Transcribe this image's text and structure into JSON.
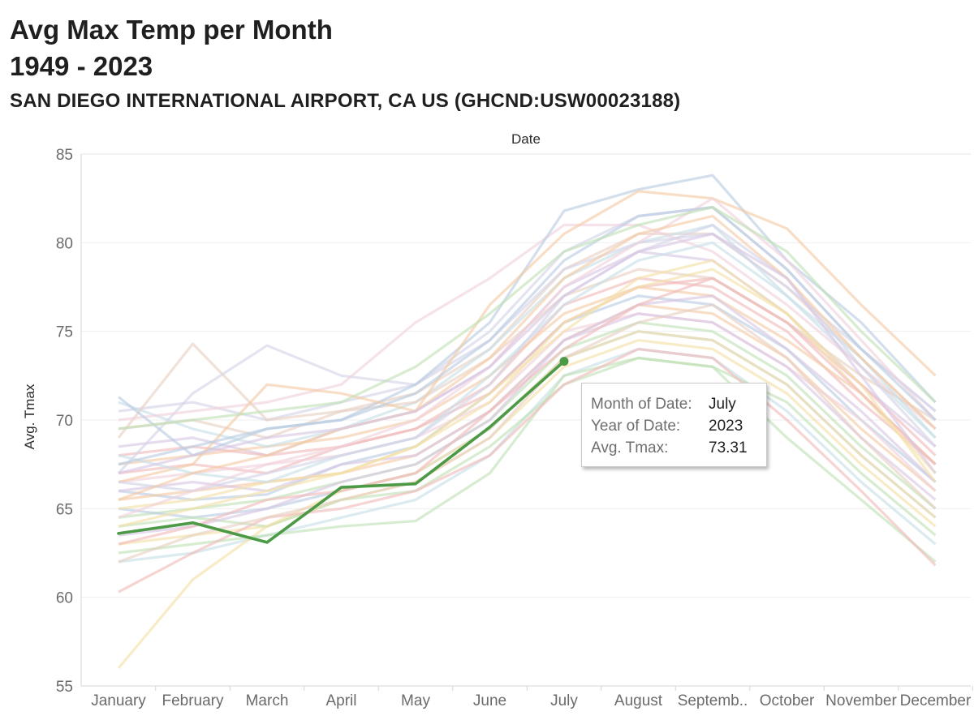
{
  "title_line1": "Avg Max Temp per Month",
  "title_line2": "1949 - 2023",
  "subtitle": "SAN DIEGO INTERNATIONAL AIRPORT, CA US (GHCND:USW00023188)",
  "chart_data": {
    "type": "line",
    "xlabel": "Date",
    "ylabel": "Avg. Tmax",
    "ylim": [
      55,
      85
    ],
    "yticks": [
      55,
      60,
      65,
      70,
      75,
      80,
      85
    ],
    "categories": [
      "January",
      "February",
      "March",
      "April",
      "May",
      "June",
      "July",
      "August",
      "Septemb..",
      "October",
      "November",
      "December"
    ],
    "grid": true,
    "highlight_color": "#4c9a46",
    "highlighted_series": {
      "year": "2023",
      "values": [
        63.6,
        64.2,
        63.1,
        66.2,
        66.4,
        69.6,
        73.31
      ]
    },
    "background_series": [
      [
        66.0,
        65.5,
        65.8,
        67.5,
        68.5,
        71.5,
        75.5,
        77.0,
        76.5,
        74.0,
        70.0,
        66.5
      ],
      [
        65.5,
        66.0,
        66.5,
        67.0,
        68.0,
        70.5,
        74.5,
        76.5,
        76.0,
        73.5,
        69.5,
        66.0
      ],
      [
        64.5,
        65.0,
        65.5,
        66.5,
        67.5,
        70.0,
        74.0,
        75.5,
        75.0,
        72.5,
        68.5,
        65.0
      ],
      [
        67.0,
        67.5,
        67.0,
        68.5,
        69.5,
        72.0,
        76.5,
        78.0,
        77.5,
        75.0,
        71.0,
        67.5
      ],
      [
        68.5,
        69.0,
        68.0,
        69.5,
        70.5,
        73.0,
        77.5,
        79.5,
        79.0,
        76.0,
        72.0,
        68.5
      ],
      [
        63.0,
        63.5,
        64.0,
        65.5,
        66.5,
        69.0,
        73.0,
        74.5,
        74.0,
        71.5,
        67.5,
        64.0
      ],
      [
        62.0,
        62.5,
        63.5,
        64.5,
        65.5,
        68.0,
        72.5,
        74.0,
        73.5,
        70.5,
        66.5,
        63.0
      ],
      [
        69.5,
        70.0,
        69.0,
        70.5,
        71.5,
        74.0,
        78.5,
        80.5,
        80.5,
        77.5,
        73.5,
        69.5
      ],
      [
        70.5,
        71.0,
        70.0,
        71.0,
        72.0,
        75.0,
        79.5,
        81.5,
        82.0,
        78.5,
        74.0,
        70.5
      ],
      [
        66.5,
        67.0,
        67.5,
        68.0,
        69.0,
        71.0,
        75.0,
        76.0,
        75.5,
        73.0,
        70.0,
        66.0
      ],
      [
        65.0,
        64.5,
        65.0,
        66.0,
        67.0,
        69.5,
        73.5,
        75.0,
        74.5,
        72.0,
        68.0,
        64.5
      ],
      [
        67.5,
        68.0,
        68.5,
        69.0,
        70.0,
        72.5,
        76.0,
        77.5,
        77.0,
        74.5,
        71.5,
        67.5
      ],
      [
        64.0,
        64.5,
        64.0,
        65.5,
        66.0,
        68.5,
        72.0,
        73.5,
        73.0,
        71.0,
        67.0,
        63.5
      ],
      [
        68.0,
        68.5,
        68.0,
        68.5,
        69.5,
        71.5,
        75.5,
        77.5,
        78.0,
        75.5,
        72.0,
        68.0
      ],
      [
        66.0,
        66.5,
        66.0,
        67.5,
        68.0,
        70.5,
        74.5,
        76.0,
        75.5,
        73.0,
        69.0,
        65.5
      ],
      [
        56.0,
        61.0,
        64.0,
        66.0,
        67.0,
        69.5,
        73.5,
        75.0,
        74.5,
        72.0,
        68.0,
        64.5
      ],
      [
        71.0,
        69.5,
        68.5,
        69.5,
        71.0,
        74.0,
        78.0,
        80.0,
        81.0,
        77.0,
        73.0,
        69.0
      ],
      [
        69.0,
        74.3,
        70.0,
        70.5,
        71.0,
        73.5,
        77.0,
        78.5,
        78.0,
        75.5,
        72.5,
        70.0
      ],
      [
        67.0,
        71.5,
        74.2,
        72.5,
        72.0,
        74.5,
        78.5,
        80.0,
        80.5,
        77.5,
        74.0,
        70.5
      ],
      [
        70.0,
        70.5,
        71.0,
        72.0,
        75.5,
        78.0,
        81.0,
        81.0,
        79.5,
        76.5,
        73.0,
        69.5
      ],
      [
        71.3,
        68.0,
        69.5,
        70.0,
        72.0,
        75.5,
        81.8,
        83.0,
        83.8,
        79.0,
        75.5,
        71.0
      ],
      [
        66.5,
        67.5,
        72.0,
        71.5,
        70.5,
        76.5,
        80.5,
        82.9,
        82.5,
        80.8,
        76.5,
        72.5
      ],
      [
        62.5,
        63.0,
        63.5,
        64.0,
        64.3,
        67.0,
        72.5,
        73.5,
        73.0,
        69.0,
        65.5,
        62.0
      ],
      [
        60.3,
        62.5,
        64.5,
        65.0,
        66.0,
        68.0,
        72.0,
        74.0,
        73.5,
        70.0,
        66.0,
        61.8
      ],
      [
        63.5,
        64.0,
        65.0,
        66.5,
        67.5,
        70.0,
        74.5,
        76.5,
        77.0,
        74.0,
        70.5,
        66.5
      ],
      [
        65.0,
        65.5,
        66.5,
        67.0,
        68.5,
        71.5,
        75.0,
        78.0,
        79.0,
        76.0,
        71.5,
        67.0
      ],
      [
        68.0,
        67.0,
        66.5,
        68.0,
        69.0,
        72.5,
        76.5,
        79.0,
        80.0,
        77.0,
        73.5,
        69.0
      ],
      [
        62.0,
        63.5,
        64.5,
        65.5,
        66.5,
        69.0,
        73.5,
        75.5,
        76.5,
        73.5,
        69.0,
        65.0
      ],
      [
        66.5,
        66.0,
        67.0,
        68.0,
        69.0,
        72.0,
        77.0,
        79.5,
        81.0,
        78.0,
        73.0,
        68.5
      ],
      [
        64.5,
        66.0,
        67.5,
        68.5,
        70.0,
        73.0,
        77.5,
        80.0,
        82.5,
        79.0,
        74.5,
        70.0
      ],
      [
        67.5,
        68.5,
        69.5,
        70.0,
        71.5,
        74.5,
        79.0,
        81.5,
        82.0,
        78.5,
        74.0,
        70.0
      ],
      [
        65.5,
        67.0,
        68.0,
        69.5,
        70.5,
        73.5,
        78.0,
        80.5,
        81.5,
        78.0,
        73.5,
        69.5
      ],
      [
        69.5,
        70.0,
        70.5,
        71.0,
        73.0,
        76.0,
        79.5,
        81.0,
        82.0,
        79.5,
        75.0,
        71.0
      ],
      [
        63.0,
        64.0,
        65.5,
        66.0,
        67.0,
        70.5,
        74.0,
        76.5,
        78.0,
        75.5,
        71.5,
        67.5
      ],
      [
        67.0,
        68.0,
        69.0,
        69.5,
        70.5,
        73.0,
        77.0,
        79.5,
        80.5,
        78.0,
        72.5,
        67.0
      ],
      [
        64.0,
        65.0,
        66.0,
        67.0,
        68.5,
        71.0,
        75.5,
        77.5,
        78.5,
        76.0,
        72.0,
        66.5
      ]
    ]
  },
  "tooltip": {
    "rows": [
      {
        "label": "Month of Date:",
        "value": "July"
      },
      {
        "label": "Year of Date:",
        "value": "2023"
      },
      {
        "label": "Avg. Tmax:",
        "value": "73.31"
      }
    ]
  }
}
